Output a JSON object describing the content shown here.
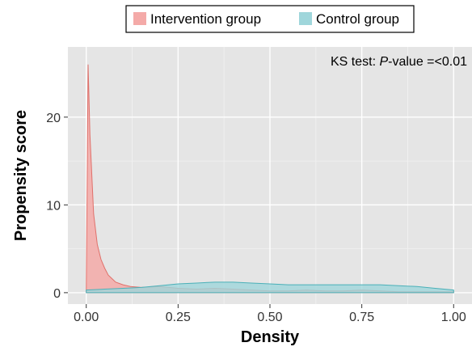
{
  "chart_data": {
    "type": "area",
    "xlabel": "Density",
    "ylabel": "Propensity score",
    "xlim": [
      -0.05,
      1.05
    ],
    "ylim": [
      -1.3,
      28
    ],
    "x_ticks": [
      0.0,
      0.25,
      0.5,
      0.75,
      1.0
    ],
    "x_tick_labels": [
      "0.00",
      "0.25",
      "0.50",
      "0.75",
      "1.00"
    ],
    "y_ticks": [
      0,
      10,
      20
    ],
    "y_tick_labels": [
      "0",
      "10",
      "20"
    ],
    "grid": true,
    "legend_position": "top",
    "annotation": {
      "prefix": "KS test: ",
      "italic": "P",
      "suffix": "-value =<0.01"
    },
    "series": [
      {
        "name": "Intervention group",
        "color": "#f4aaa8",
        "line_color": "#e0706a",
        "x": [
          0.0,
          0.005,
          0.01,
          0.02,
          0.03,
          0.04,
          0.05,
          0.06,
          0.07,
          0.08,
          0.1,
          0.12,
          0.15,
          0.2,
          0.25,
          0.3,
          0.35,
          0.4,
          0.45,
          0.5,
          0.55,
          0.6,
          0.65,
          0.7,
          0.75,
          0.8,
          0.85,
          0.9,
          0.95,
          1.0
        ],
        "values": [
          0.2,
          26.0,
          18.0,
          9.0,
          5.5,
          3.8,
          2.8,
          2.0,
          1.6,
          1.2,
          0.9,
          0.7,
          0.6,
          0.7,
          0.5,
          0.4,
          0.5,
          0.4,
          0.3,
          0.2,
          0.2,
          0.3,
          0.2,
          0.2,
          0.3,
          0.2,
          0.1,
          0.1,
          0.1,
          0.1
        ]
      },
      {
        "name": "Control group",
        "color": "#9fd6db",
        "line_color": "#4ab0b8",
        "x": [
          0.0,
          0.05,
          0.1,
          0.15,
          0.2,
          0.25,
          0.3,
          0.35,
          0.4,
          0.45,
          0.5,
          0.55,
          0.6,
          0.65,
          0.7,
          0.75,
          0.8,
          0.85,
          0.9,
          0.95,
          1.0
        ],
        "values": [
          0.3,
          0.4,
          0.5,
          0.6,
          0.8,
          1.0,
          1.1,
          1.2,
          1.2,
          1.1,
          1.0,
          0.9,
          0.9,
          0.9,
          0.9,
          0.9,
          0.9,
          0.8,
          0.7,
          0.5,
          0.3
        ]
      }
    ]
  }
}
